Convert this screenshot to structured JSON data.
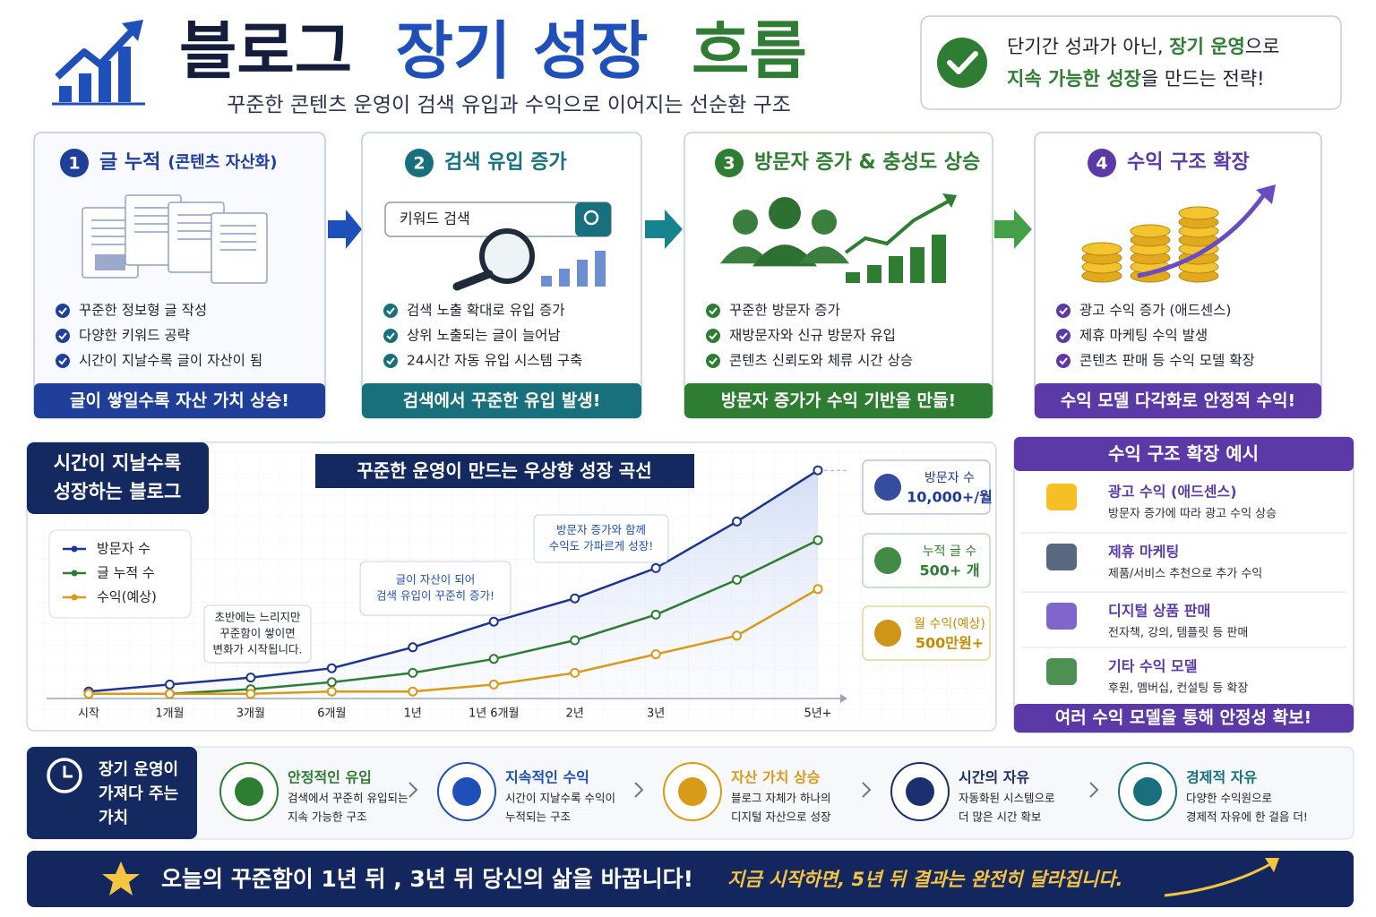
{
  "header": {
    "title": [
      "블로그",
      "장기 성장",
      "흐름"
    ],
    "subtitle": "꾸준한 콘텐츠 운영이 검색 유입과 수익으로 이어지는 선순환 구조",
    "tagline": [
      [
        "단기간 성과가 아닌, ",
        "장기 운영",
        "으로"
      ],
      [
        "지속 가능한 성장",
        "을 만드는 전략!"
      ]
    ]
  },
  "steps": [
    {
      "number": "1",
      "title": "글 누적",
      "note": "(콘텐츠 자산화)",
      "bullets": [
        "꾸준한 정보형 글 작성",
        "다양한 키워드 공략",
        "시간이 지날수록 글이 자산이 됨"
      ],
      "footer": "글이 쌓일수록 자산 가치 상승!"
    },
    {
      "number": "2",
      "title": "검색 유입 증가",
      "search_placeholder": "키워드 검색",
      "bullets": [
        "검색 노출 확대로 유입 증가",
        "상위 노출되는 글이 늘어남",
        "24시간 자동 유입 시스템 구축"
      ],
      "footer": "검색에서 꾸준한 유입 발생!"
    },
    {
      "number": "3",
      "title": "방문자 증가 & 충성도 상승",
      "bullets": [
        "꾸준한 방문자 증가",
        "재방문자와 신규 방문자 유입",
        "콘텐츠 신뢰도와 체류 시간 상승"
      ],
      "footer": "방문자 증가가 수익 기반을 만듦!"
    },
    {
      "number": "4",
      "title": "수익 구조 확장",
      "bullets": [
        "광고 수익 증가 (애드센스)",
        "제휴 마케팅 수익 발생",
        "콘텐츠 판매 등 수익 모델 확장"
      ],
      "footer": "수익 모델 다각화로 안정적 수익!"
    }
  ],
  "chart_data": {
    "type": "line",
    "badge": [
      "시간이 지날수록",
      "성장하는 블로그"
    ],
    "title": "꾸준한 운영이 만드는 우상향 성장 곡선",
    "categories": [
      "시작",
      "1개월",
      "3개월",
      "6개월",
      "1년",
      "1년 6개월",
      "2년",
      "3년",
      null,
      "5년+"
    ],
    "series": [
      {
        "name": "방문자 수",
        "color": "#1c3591",
        "values": [
          3,
          6,
          9,
          13,
          22,
          33,
          43,
          56,
          76,
          98
        ]
      },
      {
        "name": "글 누적 수",
        "color": "#2e7d32",
        "values": [
          2,
          2,
          4,
          7,
          11,
          17,
          25,
          36,
          51,
          68
        ]
      },
      {
        "name": "수익(예상)",
        "color": "#d99a17",
        "values": [
          2,
          2,
          2,
          3,
          3,
          6,
          11,
          19,
          27,
          47
        ]
      }
    ],
    "ylim": [
      0,
      100
    ],
    "annotations": [
      [
        "초반에는 느리지만",
        "꾸준함이 쌓이면",
        "변화가 시작됩니다."
      ],
      [
        "글이 자산이 되어",
        "검색 유입이 꾸준히 증가!"
      ],
      [
        "방문자 증가와 함께",
        "수익도 가파르게 성장!"
      ]
    ]
  },
  "stats": [
    {
      "label": "방문자 수",
      "value": "10,000+/월"
    },
    {
      "label": "누적 글 수",
      "value": "500+ 개"
    },
    {
      "label": "월 수익(예상)",
      "value": "500만원+"
    }
  ],
  "revenue_examples": {
    "title": "수익 구조 확장 예시",
    "items": [
      {
        "title": "광고 수익 (애드센스)",
        "desc": "방문자 증가에 따라 광고 수익 상승"
      },
      {
        "title": "제휴 마케팅",
        "desc": "제품/서비스 추천으로 추가 수익"
      },
      {
        "title": "디지털 상품 판매",
        "desc": "전자책, 강의, 템플릿 등 판매"
      },
      {
        "title": "기타 수익 모델",
        "desc": "후원, 멤버십, 컨설팅 등 확장"
      }
    ],
    "footer": "여러 수익 모델을 통해 안정성 확보!"
  },
  "values": {
    "heading": [
      "장기 운영이",
      "가져다 주는",
      "가치"
    ],
    "items": [
      {
        "title": "안정적인 유입",
        "lines": [
          "검색에서 꾸준히 유입되는",
          "지속 가능한 구조"
        ]
      },
      {
        "title": "지속적인 수익",
        "lines": [
          "시간이 지날수록 수익이",
          "누적되는 구조"
        ]
      },
      {
        "title": "자산 가치 상승",
        "lines": [
          "블로그 자체가 하나의",
          "디지털 자산으로 성장"
        ]
      },
      {
        "title": "시간의 자유",
        "lines": [
          "자동화된 시스템으로",
          "더 많은 시간 확보"
        ]
      },
      {
        "title": "경제적 자유",
        "lines": [
          "다양한 수익원으로",
          "경제적 자유에 한 걸음 더!"
        ]
      }
    ]
  },
  "footer": {
    "message": "오늘의 꾸준함이 1년 뒤 , 3년 뒤 당신의 삶을 바꿉니다!",
    "slogan": "지금 시작하면, 5년 뒤 결과는 완전히 달라집니다."
  }
}
